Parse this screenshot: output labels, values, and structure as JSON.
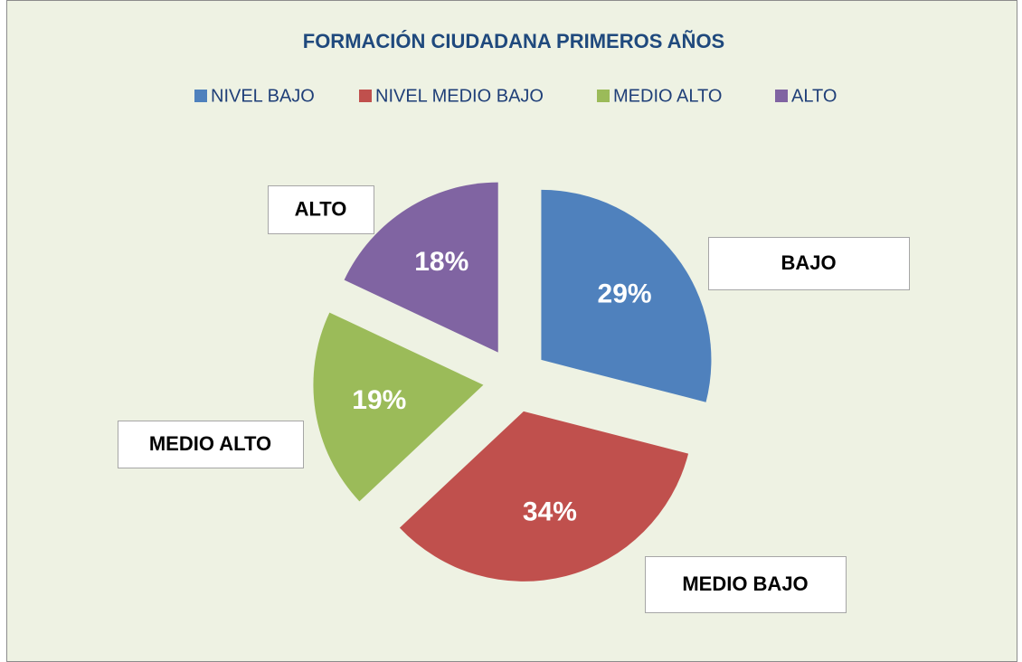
{
  "chart_data": {
    "type": "pie",
    "title": "FORMACIÓN CIUDADANA PRIMEROS AÑOS",
    "categories": [
      "NIVEL BAJO",
      "NIVEL MEDIO BAJO",
      "MEDIO ALTO",
      "ALTO"
    ],
    "values": [
      29,
      34,
      19,
      18
    ],
    "value_labels": [
      "29%",
      "34%",
      "19%",
      "18%"
    ],
    "callouts": [
      "BAJO",
      "MEDIO BAJO",
      "MEDIO ALTO",
      "ALTO"
    ],
    "colors": [
      "#4f81bd",
      "#c0504d",
      "#9bbb59",
      "#8064a2"
    ],
    "legend": "top"
  }
}
